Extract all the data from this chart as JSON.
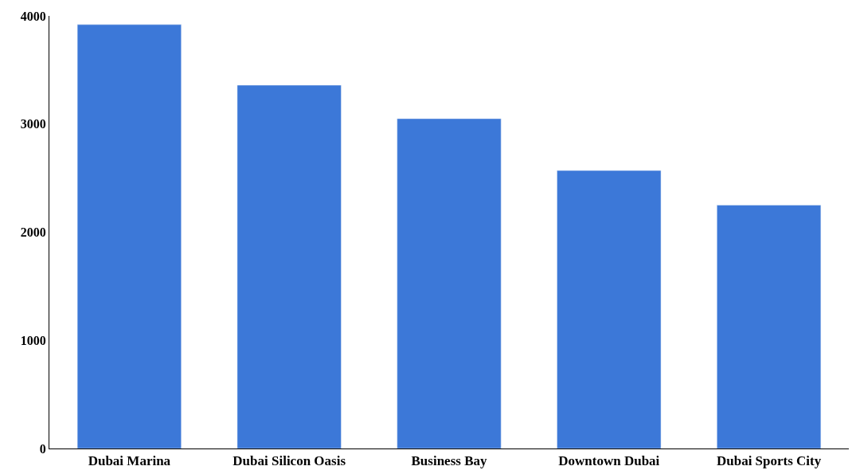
{
  "chart_data": {
    "type": "bar",
    "categories": [
      "Dubai Marina",
      "Dubai Silicon Oasis",
      "Business Bay",
      "Downtown Dubai",
      "Dubai Sports City"
    ],
    "values": [
      3920,
      3360,
      3050,
      2570,
      2250
    ],
    "color": "#3c78d8",
    "ylim": [
      0,
      4000
    ],
    "yticks": [
      0,
      1000,
      2000,
      3000,
      4000
    ],
    "legend": false
  }
}
